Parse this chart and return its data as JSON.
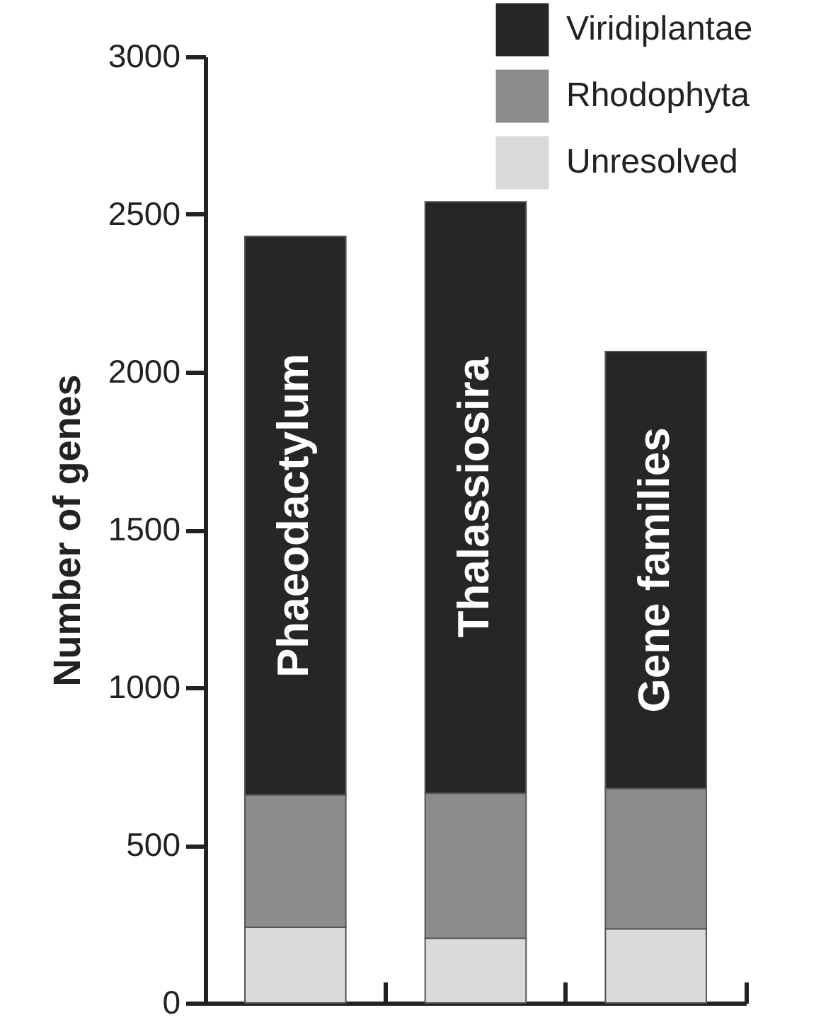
{
  "chart_data": {
    "type": "bar",
    "stacked": true,
    "ylabel": "Number of genes",
    "categories": [
      "Phaeodactylum",
      "Thalassiosira",
      "Gene families"
    ],
    "series": [
      {
        "name": "Unresolved",
        "color": "#d9d9d9",
        "values": [
          240,
          205,
          235
        ]
      },
      {
        "name": "Rhodophyta",
        "color": "#8c8c8c",
        "values": [
          420,
          460,
          445
        ]
      },
      {
        "name": "Viridiplantae",
        "color": "#262626",
        "values": [
          1770,
          1875,
          1385
        ]
      }
    ],
    "ylim": [
      0,
      3000
    ],
    "yticks": [
      0,
      500,
      1000,
      1500,
      2000,
      2500,
      3000
    ],
    "legend": "top right"
  }
}
